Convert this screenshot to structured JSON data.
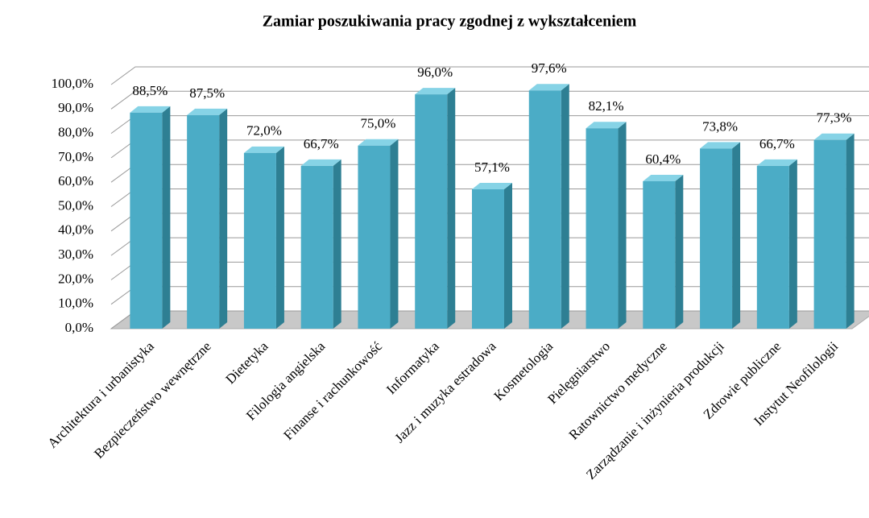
{
  "chart_data": {
    "type": "bar3d",
    "title": "Zamiar poszukiwania pracy zgodnej z wykształceniem",
    "categories": [
      "Architektura i urbanistyka",
      "Bezpieczeństwo wewnętrzne",
      "Dietetyka",
      "Filologia angielska",
      "Finanse i rachunkowość",
      "Informatyka",
      "Jazz i muzyka estradowa",
      "Kosmetologia",
      "Pielęgniarstwo",
      "Ratownictwo medyczne",
      "Zarządzanie i inżynieria produkcji",
      "Zdrowie publiczne",
      "Instytut Neofilologii"
    ],
    "values": [
      88.5,
      87.5,
      72.0,
      66.7,
      75.0,
      96.0,
      57.1,
      97.6,
      82.1,
      60.4,
      73.8,
      66.7,
      77.3
    ],
    "value_labels": [
      "88,5%",
      "87,5%",
      "72,0%",
      "66,7%",
      "75,0%",
      "96,0%",
      "57,1%",
      "97,6%",
      "82,1%",
      "60,4%",
      "73,8%",
      "66,7%",
      "77,3%"
    ],
    "color": "#4bacc6",
    "ylim": [
      0,
      100
    ],
    "yticks": [
      {
        "value": 0,
        "label": "0,0%"
      },
      {
        "value": 10,
        "label": "10,0%"
      },
      {
        "value": 20,
        "label": "20,0%"
      },
      {
        "value": 30,
        "label": "30,0%"
      },
      {
        "value": 40,
        "label": "40,0%"
      },
      {
        "value": 50,
        "label": "50,0%"
      },
      {
        "value": 60,
        "label": "60,0%"
      },
      {
        "value": 70,
        "label": "70,0%"
      },
      {
        "value": 80,
        "label": "80,0%"
      },
      {
        "value": 90,
        "label": "90,0%"
      },
      {
        "value": 100,
        "label": "100,0%"
      }
    ],
    "grid": true
  }
}
